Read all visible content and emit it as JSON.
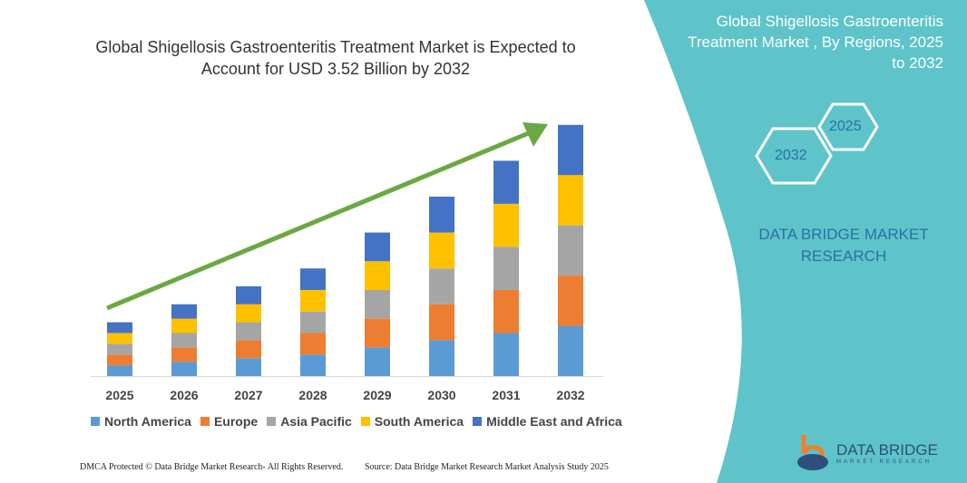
{
  "title": "Global Shigellosis Gastroenteritis Treatment Market is Expected to Account for USD 3.52 Billion by 2032",
  "side": {
    "title": "Global Shigellosis Gastroenteritis Treatment Market , By Regions, 2025 to 2032",
    "hex_a": "2025",
    "hex_b": "2032",
    "brand": "DATA BRIDGE MARKET RESEARCH"
  },
  "footer": {
    "left": "DMCA Protected © Data Bridge Market Research- All Rights Reserved.",
    "right": "Source: Data Bridge Market Research Market Analysis Study 2025"
  },
  "logo": {
    "name": "DATA BRIDGE",
    "sub": "MARKET RESEARCH"
  },
  "colors": {
    "teal": "#5ec4c9",
    "arrow": "#6aa842"
  },
  "chart_data": {
    "type": "bar",
    "stacked": true,
    "title": "Global Shigellosis Gastroenteritis Treatment Market is Expected to Account for USD 3.52 Billion by 2032",
    "categories": [
      "2025",
      "2026",
      "2027",
      "2028",
      "2029",
      "2030",
      "2031",
      "2032"
    ],
    "series": [
      {
        "name": "North America",
        "color": "#5b9bd5",
        "values": [
          12,
          16,
          20,
          24,
          32,
          40,
          48,
          56
        ]
      },
      {
        "name": "Europe",
        "color": "#ed7d31",
        "values": [
          12,
          16,
          20,
          24,
          32,
          40,
          48,
          56
        ]
      },
      {
        "name": "Asia Pacific",
        "color": "#a5a5a5",
        "values": [
          12,
          16,
          20,
          24,
          32,
          40,
          48,
          56
        ]
      },
      {
        "name": "South America",
        "color": "#ffc000",
        "values": [
          12,
          16,
          20,
          24,
          32,
          40,
          48,
          56
        ]
      },
      {
        "name": "Middle East and Africa",
        "color": "#4472c4",
        "values": [
          12,
          16,
          20,
          24,
          32,
          40,
          48,
          56
        ]
      }
    ],
    "legend": "bottom",
    "grid": false,
    "trend_arrow": true
  }
}
